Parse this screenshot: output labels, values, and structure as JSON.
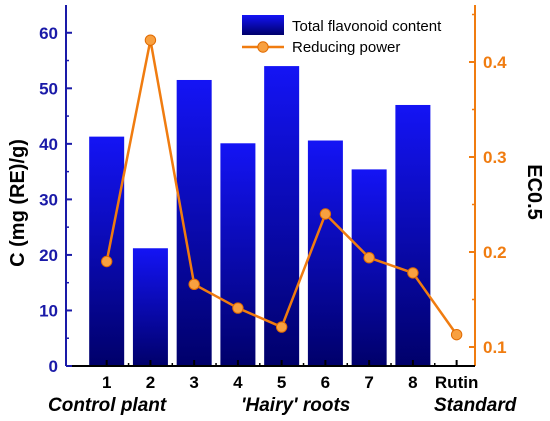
{
  "chart_data": {
    "type": "bar+line",
    "title": "",
    "categories": [
      "1",
      "2",
      "3",
      "4",
      "5",
      "6",
      "7",
      "8",
      "Rutin"
    ],
    "x_groups": [
      {
        "label": "Control plant",
        "categories": [
          "1"
        ]
      },
      {
        "label": "'Hairy' roots",
        "categories": [
          "2",
          "3",
          "4",
          "5",
          "6",
          "7",
          "8"
        ]
      },
      {
        "label": "Standard",
        "categories": [
          "Rutin"
        ]
      }
    ],
    "ylabel_left": "C (mg (RE)/g)",
    "ylabel_right": "EC0.5",
    "ylim_left": [
      0,
      65
    ],
    "ylim_right": [
      0.08,
      0.46
    ],
    "yticks_left": [
      0,
      10,
      20,
      30,
      40,
      50,
      60
    ],
    "yticks_right": [
      0.1,
      0.2,
      0.3,
      0.4
    ],
    "series": [
      {
        "name": "Total flavonoid content",
        "type": "bar",
        "axis": "left",
        "color": "#0a0ad8",
        "values": [
          41.3,
          21.2,
          51.5,
          40.1,
          54.0,
          40.6,
          35.4,
          47.0,
          null
        ]
      },
      {
        "name": "Reducing power",
        "type": "line",
        "axis": "right",
        "color": "#f07c10",
        "values": [
          0.19,
          0.423,
          0.166,
          0.141,
          0.121,
          0.24,
          0.194,
          0.178,
          0.113
        ]
      }
    ],
    "legend": "top-right",
    "grid": false
  }
}
